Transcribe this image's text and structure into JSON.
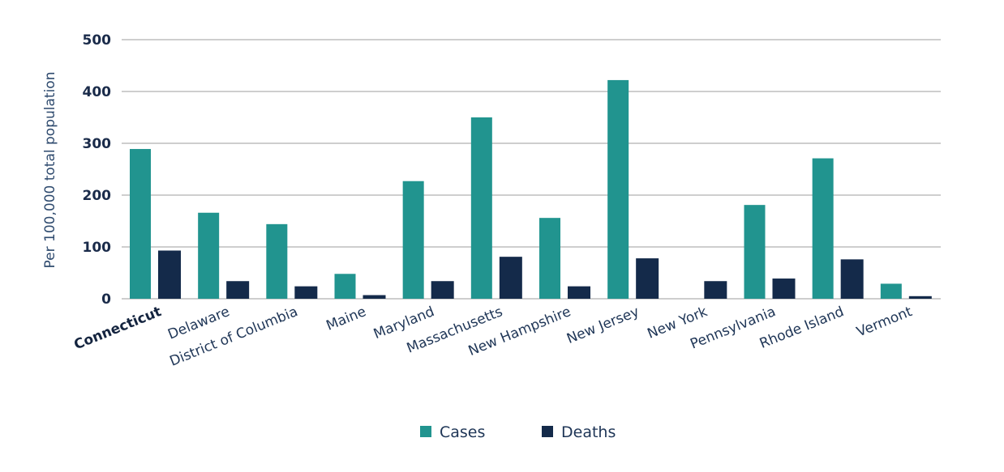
{
  "chart_data": {
    "type": "bar",
    "title": "",
    "xlabel": "",
    "ylabel": "Per 100,000 total population",
    "ylim": [
      0,
      500
    ],
    "yticks": [
      "0",
      "100",
      "200",
      "300",
      "400",
      "500"
    ],
    "grid": true,
    "legend_position": "bottom-center",
    "categories": [
      "Connecticut",
      "Delaware",
      "District of Columbia",
      "Maine",
      "Maryland",
      "Massachusetts",
      "New Hampshire",
      "New Jersey",
      "New York",
      "Pennsylvania",
      "Rhode Island",
      "Vermont"
    ],
    "highlighted_category": "Connecticut",
    "series": [
      {
        "name": "Cases",
        "color": "#21948f",
        "values": [
          289,
          166,
          144,
          48,
          227,
          350,
          156,
          422,
          0,
          181,
          271,
          29
        ]
      },
      {
        "name": "Deaths",
        "color": "#142a4a",
        "values": [
          93,
          34,
          24,
          7,
          34,
          81,
          24,
          78,
          34,
          39,
          76,
          5
        ]
      }
    ]
  }
}
